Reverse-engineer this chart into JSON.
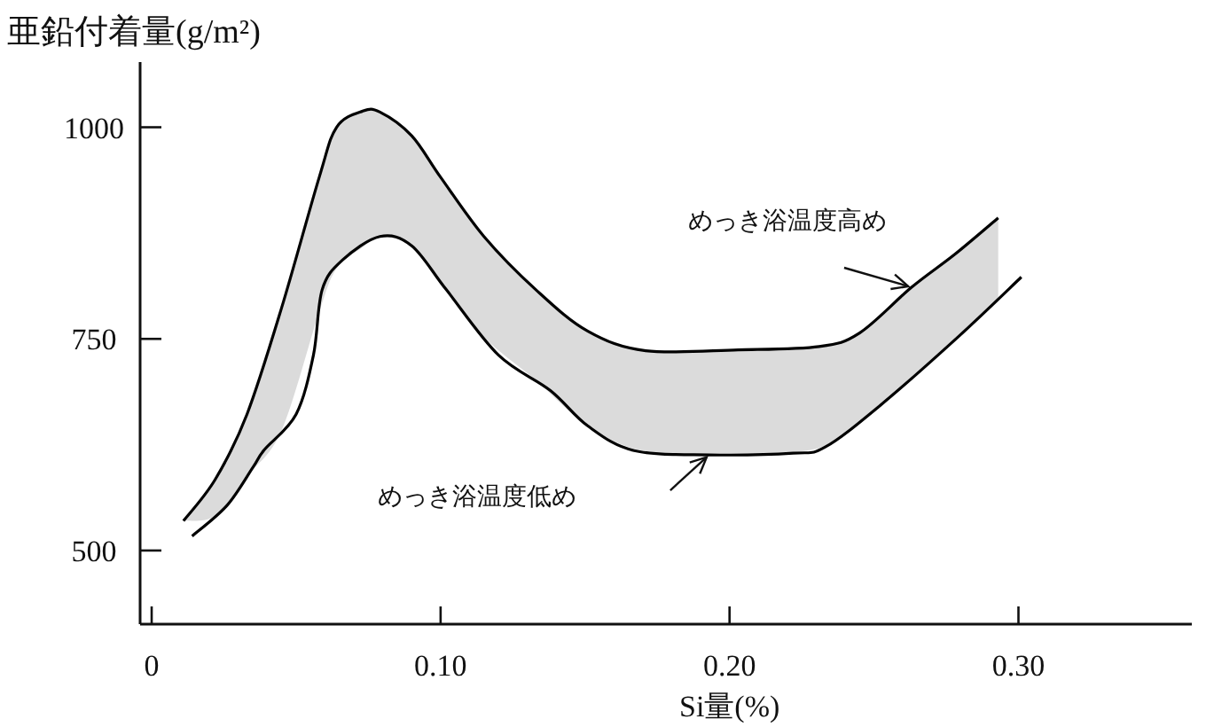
{
  "chart_data": {
    "type": "line",
    "ylabel": "亜鉛付着量(g/m²)",
    "xlabel": "Si量(%)",
    "xlim": [
      -0.004,
      0.36
    ],
    "ylim": [
      413,
      1077
    ],
    "xticks": [
      {
        "value": 0,
        "label": "0"
      },
      {
        "value": 0.1,
        "label": "0.10"
      },
      {
        "value": 0.2,
        "label": "0.20"
      },
      {
        "value": 0.3,
        "label": "0.30"
      }
    ],
    "yticks": [
      500,
      750,
      1000
    ],
    "grid": false,
    "legend": false,
    "marker": "none",
    "line_style": "solid",
    "series": [
      {
        "name": "めっき浴温度高め",
        "color": "#000000",
        "x": [
          0.011,
          0.022,
          0.033,
          0.045,
          0.058,
          0.064,
          0.073,
          0.079,
          0.09,
          0.1,
          0.115,
          0.133,
          0.151,
          0.171,
          0.203,
          0.231,
          0.245,
          0.263,
          0.278,
          0.293
        ],
        "values": [
          535,
          584,
          661,
          787,
          941,
          1000,
          1019,
          1018,
          990,
          941,
          871,
          808,
          759,
          736,
          737,
          741,
          757,
          811,
          850,
          893
        ],
        "upper": [
          535,
          584,
          661,
          787,
          941,
          1000,
          1019,
          1018,
          990,
          941,
          871,
          808,
          759,
          736,
          737,
          741,
          757,
          811,
          850,
          893
        ],
        "lower": [
          535,
          541,
          588,
          642,
          782,
          833,
          858,
          871,
          860,
          817,
          752,
          701,
          647,
          617,
          614,
          621,
          653,
          704,
          749,
          797
        ]
      },
      {
        "name": "めっき浴温度低め",
        "color": "#000000",
        "x": [
          0.014,
          0.026,
          0.035,
          0.039,
          0.05,
          0.056,
          0.059,
          0.066,
          0.079,
          0.09,
          0.102,
          0.12,
          0.138,
          0.151,
          0.167,
          0.193,
          0.222,
          0.233,
          0.252,
          0.279,
          0.301
        ],
        "values": [
          517,
          553,
          598,
          619,
          661,
          731,
          808,
          843,
          871,
          860,
          808,
          731,
          689,
          647,
          618,
          613,
          615,
          622,
          671,
          752,
          823
        ]
      }
    ]
  }
}
